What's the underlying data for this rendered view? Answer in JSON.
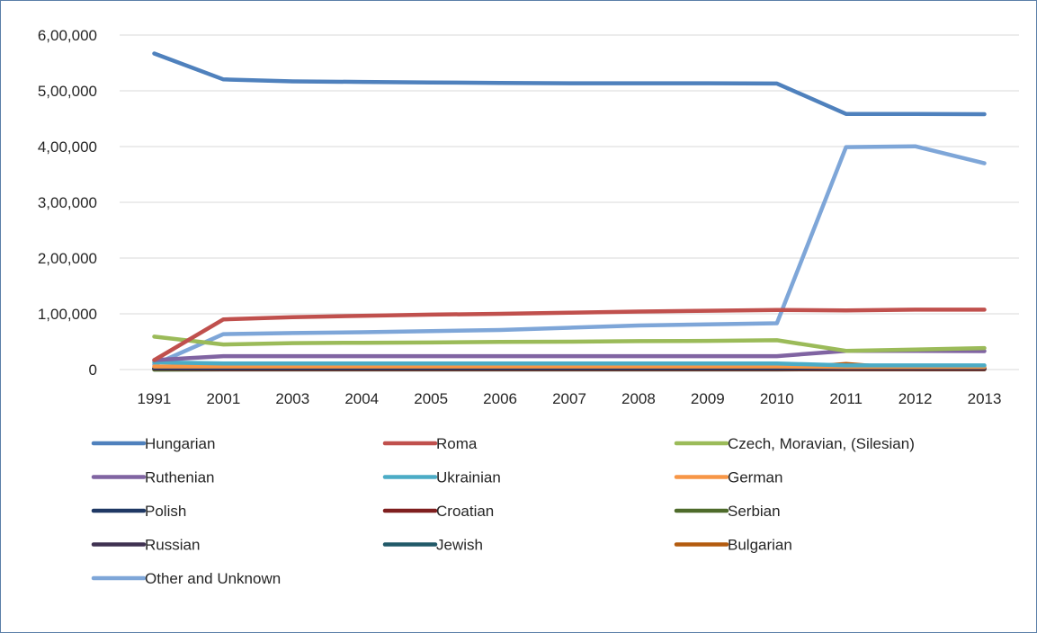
{
  "chart_data": {
    "type": "line",
    "title": "",
    "xlabel": "",
    "ylabel": "",
    "ylim": [
      0,
      600000
    ],
    "y_ticks": [
      0,
      100000,
      200000,
      300000,
      400000,
      500000,
      600000
    ],
    "y_tick_labels": [
      "0",
      "1,00,000",
      "2,00,000",
      "3,00,000",
      "4,00,000",
      "5,00,000",
      "6,00,000"
    ],
    "grid": "horizontal",
    "legend_position": "bottom",
    "categories": [
      "1991",
      "2001",
      "2003",
      "2004",
      "2005",
      "2006",
      "2007",
      "2008",
      "2009",
      "2010",
      "2011",
      "2012",
      "2013"
    ],
    "series": [
      {
        "name": "Hungarian",
        "color": "#4f81bd",
        "values": [
          567000,
          520500,
          517000,
          516000,
          515000,
          514000,
          513500,
          513500,
          513500,
          513000,
          458500,
          458500,
          458000
        ]
      },
      {
        "name": "Roma",
        "color": "#c0504d",
        "values": [
          17000,
          90000,
          94000,
          96500,
          98500,
          100000,
          102000,
          104000,
          105500,
          107000,
          106000,
          107500,
          107500
        ]
      },
      {
        "name": "Czech, Moravian, (Silesian)",
        "color": "#9bbb59",
        "values": [
          59000,
          45000,
          47500,
          48000,
          48500,
          49500,
          50000,
          51000,
          51500,
          52500,
          33500,
          36000,
          38500
        ]
      },
      {
        "name": "Ruthenian",
        "color": "#8064a2",
        "values": [
          17000,
          24000,
          24000,
          24000,
          24000,
          24000,
          24000,
          24000,
          24000,
          24000,
          33500,
          33500,
          33000
        ]
      },
      {
        "name": "Ukrainian",
        "color": "#4bacc6",
        "values": [
          13000,
          11000,
          11000,
          11000,
          11000,
          11000,
          11000,
          11000,
          11000,
          11000,
          7500,
          7500,
          7500
        ]
      },
      {
        "name": "German",
        "color": "#f79646",
        "values": [
          5500,
          5500,
          5500,
          5500,
          5500,
          5500,
          5500,
          5500,
          5500,
          5500,
          4700,
          4700,
          4700
        ]
      },
      {
        "name": "Polish",
        "color": "#1f3864",
        "values": [
          2700,
          2600,
          2600,
          2600,
          2600,
          2600,
          2600,
          2600,
          2600,
          2600,
          3100,
          3100,
          3100
        ]
      },
      {
        "name": "Croatian",
        "color": "#7f1f1f",
        "values": [
          2000,
          900,
          900,
          900,
          900,
          900,
          900,
          900,
          900,
          900,
          1000,
          1000,
          1000
        ]
      },
      {
        "name": "Serbian",
        "color": "#4e6b2b",
        "values": [
          0,
          400,
          400,
          400,
          400,
          400,
          400,
          400,
          400,
          400,
          700,
          700,
          700
        ]
      },
      {
        "name": "Russian",
        "color": "#3f3151",
        "values": [
          1400,
          1600,
          1600,
          1600,
          1600,
          1600,
          1600,
          1600,
          1600,
          1600,
          1900,
          1900,
          1900
        ]
      },
      {
        "name": "Jewish",
        "color": "#215968",
        "values": [
          100,
          200,
          200,
          200,
          200,
          200,
          200,
          200,
          200,
          200,
          600,
          600,
          600
        ]
      },
      {
        "name": "Bulgarian",
        "color": "#b35b0f",
        "values": [
          1500,
          1200,
          1200,
          1200,
          1200,
          1200,
          1200,
          1200,
          1200,
          1200,
          10000,
          1000,
          1000
        ]
      },
      {
        "name": "Other and Unknown",
        "color": "#7ea6d8",
        "values": [
          9000,
          63500,
          65500,
          67000,
          69000,
          71000,
          75000,
          79000,
          81000,
          83000,
          399000,
          400500,
          370000
        ]
      }
    ]
  }
}
